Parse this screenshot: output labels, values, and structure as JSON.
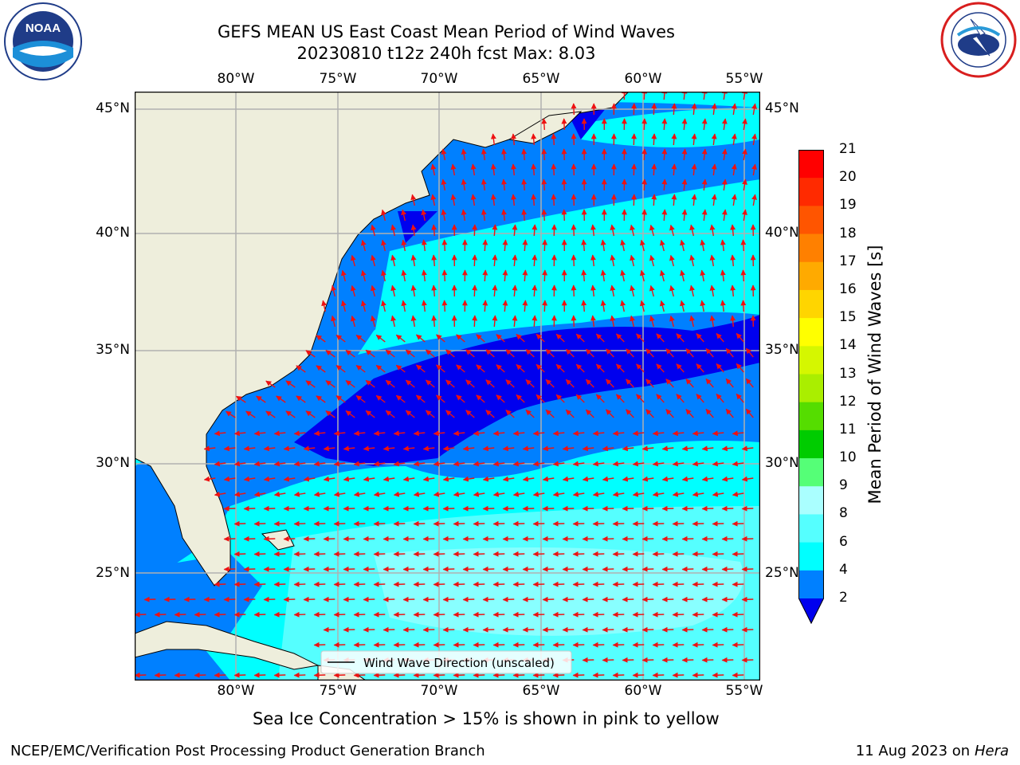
{
  "title": {
    "line1": "GEFS MEAN US East Coast Mean Period of Wind Waves",
    "line2": "20230810 t12z 240h fcst   Max: 8.03"
  },
  "map": {
    "lon_labels": [
      "80°W",
      "75°W",
      "70°W",
      "65°W",
      "60°W",
      "55°W"
    ],
    "lat_labels": [
      "45°N",
      "40°N",
      "35°N",
      "30°N",
      "25°N"
    ],
    "legend_label": "Wind Wave Direction (unscaled)",
    "arrow_color": "#ee1111",
    "land_color": "#eeeedc"
  },
  "colorbar": {
    "label": "Mean Period of Wind Waves [s]",
    "ticks": [
      "21",
      "20",
      "19",
      "18",
      "17",
      "16",
      "15",
      "14",
      "13",
      "12",
      "11",
      "10",
      "9",
      "8",
      "6",
      "4",
      "2"
    ],
    "colors": [
      "#ff0000",
      "#ff2a00",
      "#ff5500",
      "#ff8000",
      "#ffaa00",
      "#ffd500",
      "#ffff00",
      "#d5f700",
      "#aaee00",
      "#55dd00",
      "#00cc00",
      "#55ff77",
      "#aaffff",
      "#55ffff",
      "#00ffff",
      "#0080ff",
      "#0000ee"
    ]
  },
  "notes": {
    "sea_ice": "Sea Ice Concentration > 15% is shown in pink to yellow"
  },
  "footer": {
    "left": "NCEP/EMC/Verification Post Processing Product Generation Branch",
    "date": "11 Aug 2023 on",
    "machine": "Hera"
  },
  "logos": {
    "left": "noaa-logo",
    "left_text": "NOAA",
    "right": "nws-logo",
    "right_text": "NATIONAL WEATHER SERVICE"
  }
}
